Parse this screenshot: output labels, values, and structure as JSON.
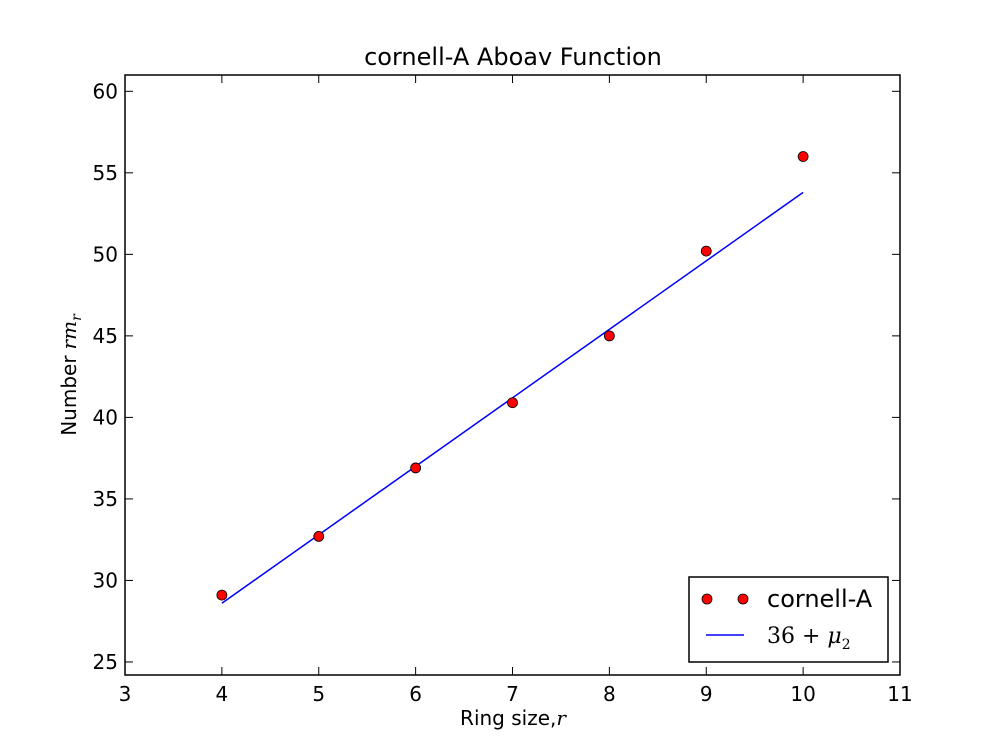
{
  "chart_data": {
    "type": "scatter",
    "title": "cornell-A Aboav Function",
    "xlabel": "Ring size,",
    "xlabel_math": "r",
    "ylabel": "Number",
    "ylabel_math": "rm",
    "ylabel_math_sub": "r",
    "xlim": [
      3,
      11
    ],
    "ylim": [
      24.2,
      61
    ],
    "xticks": [
      3,
      4,
      5,
      6,
      7,
      8,
      9,
      10,
      11
    ],
    "yticks": [
      25,
      30,
      35,
      40,
      45,
      50,
      55,
      60
    ],
    "grid": false,
    "legend_position": "lower-right",
    "series": [
      {
        "name": "cornell-A",
        "kind": "markers",
        "color": "#ff0000",
        "x": [
          4,
          5,
          6,
          7,
          8,
          9,
          10
        ],
        "y": [
          29.1,
          32.7,
          36.9,
          40.9,
          45.0,
          50.2,
          56.0
        ]
      },
      {
        "name": "36 + μ2",
        "name_parts": [
          "36 + ",
          "μ",
          "2"
        ],
        "kind": "line",
        "color": "#0000ff",
        "x": [
          4,
          10
        ],
        "y": [
          28.6,
          53.8
        ]
      }
    ]
  }
}
